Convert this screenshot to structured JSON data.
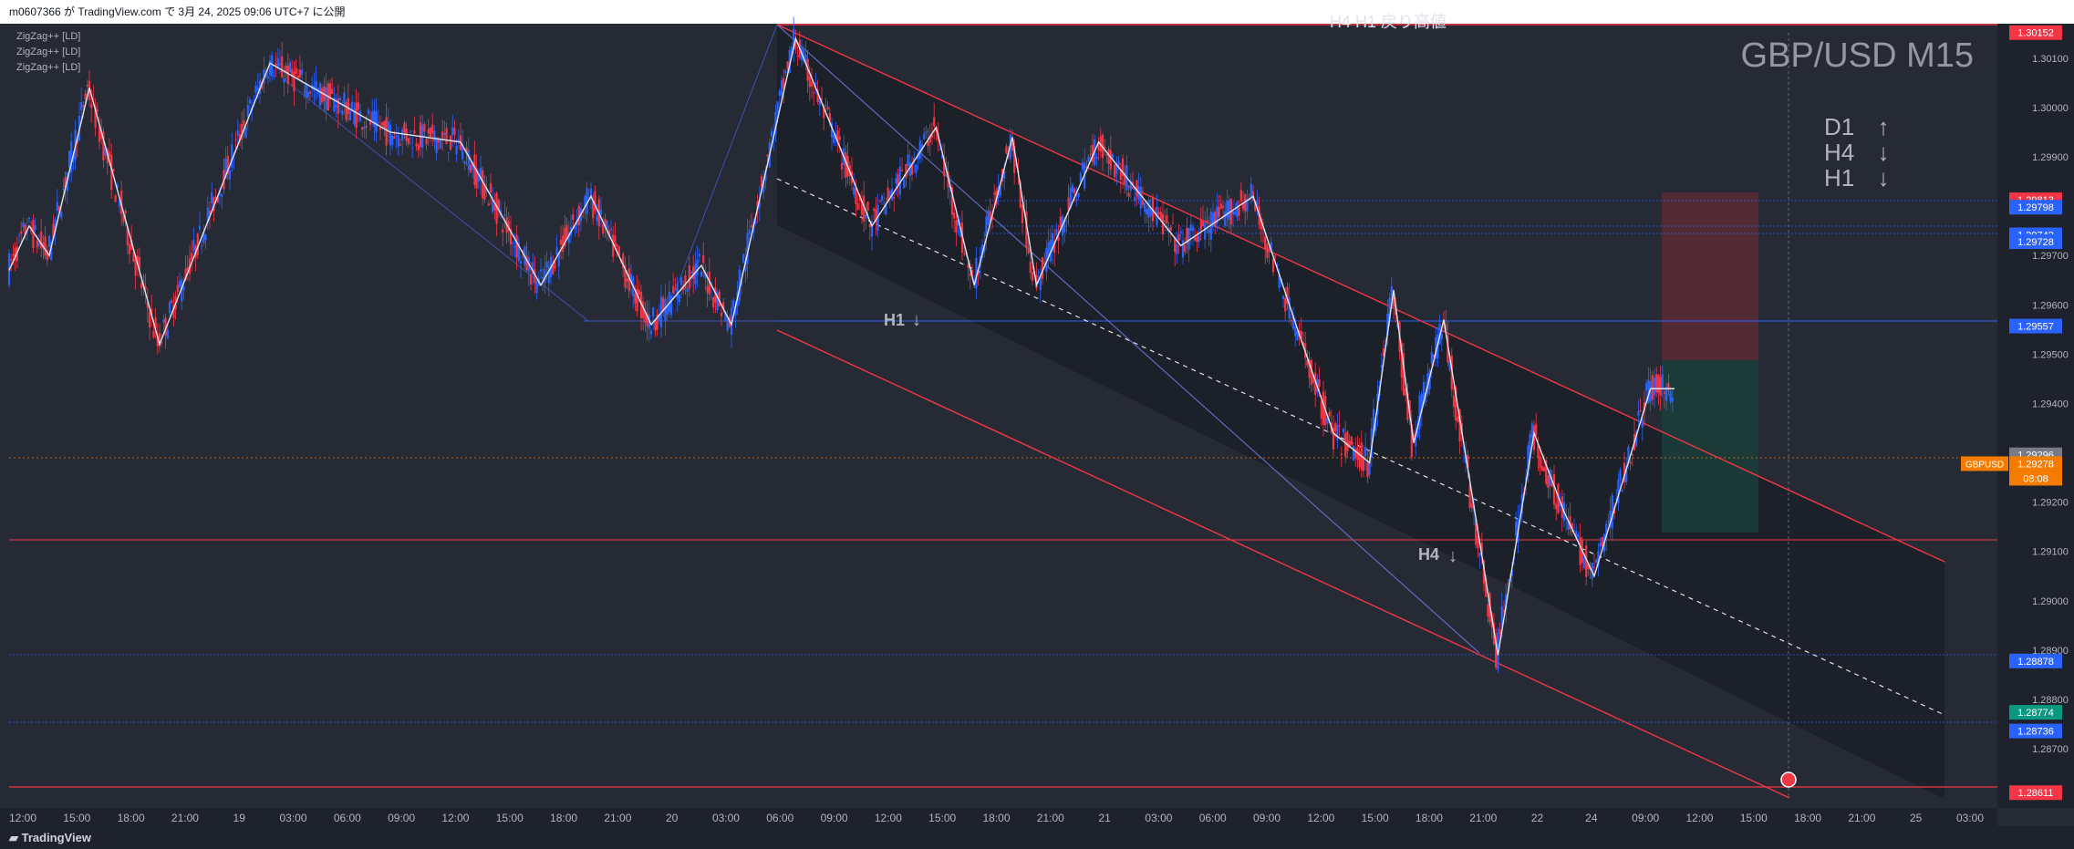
{
  "header": {
    "text": "m0607366 が TradingView.com で 3月 24, 2025 09:06 UTC+7 に公開"
  },
  "legend": [
    "ZigZag++ [LD]",
    "ZigZag++ [LD]",
    "ZigZag++ [LD]"
  ],
  "symbol_title": "GBP/USD M15",
  "trend_panel": {
    "d1": "D1",
    "h4": "H4",
    "h1": "H1",
    "d1_arrow": "↑",
    "h4_arrow": "↓",
    "h1_arrow": "↓"
  },
  "annotations": {
    "top_text": "H4 H1 戻り高値",
    "h1_label": "H1",
    "h4_label": "H4",
    "arrow_down": "↓"
  },
  "footer": {
    "brand": "TradingView"
  },
  "colors": {
    "bg": "#262a35",
    "up": "#2962ff",
    "down": "#f23645",
    "channel": "#f23645",
    "zigzag": "#e0e3eb",
    "blueline": "#3f51b5",
    "price_tag": "#f57c00",
    "tp": "#089981"
  },
  "chart_data": {
    "type": "candlestick",
    "symbol": "GBPUSD",
    "timeframe": "M15",
    "ylim": [
      1.2858,
      1.3017
    ],
    "y_ticks": [
      "1.30100",
      "1.30000",
      "1.29900",
      "1.29700",
      "1.29600",
      "1.29500",
      "1.29400",
      "1.29200",
      "1.29100",
      "1.29000",
      "1.28900",
      "1.28800",
      "1.28700"
    ],
    "x_ticks": [
      "12:00",
      "15:00",
      "18:00",
      "21:00",
      "19",
      "03:00",
      "06:00",
      "09:00",
      "12:00",
      "15:00",
      "18:00",
      "21:00",
      "20",
      "03:00",
      "06:00",
      "09:00",
      "12:00",
      "15:00",
      "18:00",
      "21:00",
      "21",
      "03:00",
      "06:00",
      "09:00",
      "12:00",
      "15:00",
      "18:00",
      "21:00",
      "22",
      "24",
      "09:00",
      "12:00",
      "15:00",
      "18:00",
      "21:00",
      "25",
      "03:00"
    ],
    "price_labels": [
      {
        "value": "1.30152",
        "color": "#f23645"
      },
      {
        "value": "1.29813",
        "color": "#f23645"
      },
      {
        "value": "1.29798",
        "color": "#2962ff"
      },
      {
        "value": "1.29742",
        "color": "#2962ff"
      },
      {
        "value": "1.29728",
        "color": "#2962ff"
      },
      {
        "value": "1.29557",
        "color": "#2962ff"
      },
      {
        "value": "1.29296",
        "color": "#787b86"
      },
      {
        "value": "1.29278",
        "color": "#f57c00"
      },
      {
        "value": "1.28878",
        "color": "#2962ff"
      },
      {
        "value": "1.28774",
        "color": "#089981"
      },
      {
        "value": "1.28736",
        "color": "#2962ff"
      },
      {
        "value": "1.28611",
        "color": "#f23645"
      }
    ],
    "current_price": {
      "symbol": "GBPUSD",
      "price": "1.29278",
      "countdown": "08:08"
    },
    "zigzag": [
      [
        0,
        1.2967
      ],
      [
        10,
        1.2976
      ],
      [
        20,
        1.297
      ],
      [
        40,
        1.3004
      ],
      [
        75,
        1.2952
      ],
      [
        130,
        1.3009
      ],
      [
        190,
        1.2995
      ],
      [
        225,
        1.2993
      ],
      [
        265,
        1.2964
      ],
      [
        290,
        1.2982
      ],
      [
        320,
        1.2956
      ],
      [
        345,
        1.2968
      ],
      [
        360,
        1.2956
      ],
      [
        392,
        1.3014
      ],
      [
        430,
        1.2976
      ],
      [
        462,
        1.2996
      ],
      [
        481,
        1.2964
      ],
      [
        500,
        1.2994
      ],
      [
        512,
        1.2964
      ],
      [
        543,
        1.2993
      ],
      [
        584,
        1.2972
      ],
      [
        620,
        1.2982
      ],
      [
        643,
        1.2954
      ],
      [
        660,
        1.2934
      ],
      [
        678,
        1.2928
      ],
      [
        690,
        1.2963
      ],
      [
        700,
        1.2932
      ],
      [
        715,
        1.2957
      ],
      [
        742,
        1.2889
      ],
      [
        760,
        1.2934
      ],
      [
        775,
        1.2918
      ],
      [
        790,
        1.2905
      ],
      [
        818,
        1.2943
      ],
      [
        830,
        1.2943
      ]
    ]
  }
}
